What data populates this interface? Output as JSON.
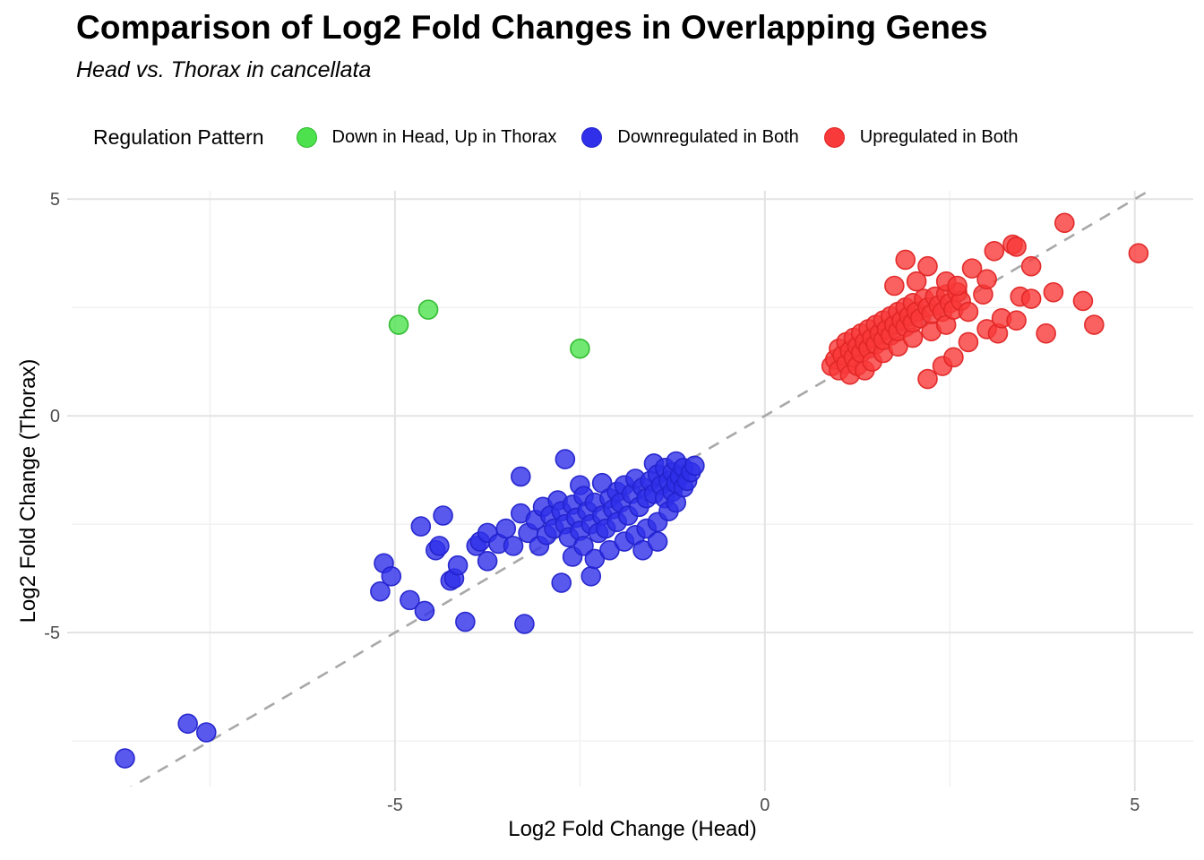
{
  "title": "Comparison of Log2 Fold Changes in Overlapping Genes",
  "subtitle": "Head vs. Thorax in cancellata",
  "legend": {
    "title": "Regulation Pattern",
    "position": "top",
    "items": [
      {
        "label": "Down in Head, Up in Thorax",
        "color": "#4de24d",
        "stroke": "#2db82d"
      },
      {
        "label": "Downregulated in Both",
        "color": "#3030ea",
        "stroke": "#2222cc"
      },
      {
        "label": "Upregulated in Both",
        "color": "#f93a3a",
        "stroke": "#e02525"
      }
    ]
  },
  "chart_data": {
    "type": "scatter",
    "title": "Comparison of Log2 Fold Changes in Overlapping Genes",
    "subtitle": "Head vs. Thorax in cancellata",
    "xlabel": "Log2 Fold Change (Head)",
    "ylabel": "Log2 Fold Change (Thorax)",
    "x_domain": [
      -9.37,
      5.79
    ],
    "y_domain": [
      -8.55,
      5.19
    ],
    "x_major_ticks": [
      -5,
      0,
      5
    ],
    "y_major_ticks": [
      5,
      0,
      -5
    ],
    "x_minor_ticks": [
      -7.5,
      -2.5,
      2.5
    ],
    "y_minor_ticks": [
      2.5,
      -2.5,
      -7.5
    ],
    "grid": true,
    "identity_line": {
      "type": "y=x",
      "style": "dashed",
      "color": "#a8a8a8"
    },
    "point_radius_px": 10.5,
    "series": [
      {
        "name": "Down in Head, Up in Thorax",
        "color": "#4de24d",
        "stroke": "#2db82d",
        "points": [
          [
            -4.95,
            2.1
          ],
          [
            -4.55,
            2.45
          ],
          [
            -2.5,
            1.55
          ]
        ]
      },
      {
        "name": "Downregulated in Both",
        "color": "#3030ea",
        "stroke": "#2222cc",
        "points": [
          [
            -8.65,
            -7.9
          ],
          [
            -7.8,
            -7.1
          ],
          [
            -7.55,
            -7.3
          ],
          [
            -5.2,
            -4.05
          ],
          [
            -5.15,
            -3.4
          ],
          [
            -5.05,
            -3.7
          ],
          [
            -4.8,
            -4.25
          ],
          [
            -4.65,
            -2.55
          ],
          [
            -4.6,
            -4.5
          ],
          [
            -4.45,
            -3.1
          ],
          [
            -4.4,
            -3.0
          ],
          [
            -4.35,
            -2.3
          ],
          [
            -4.25,
            -3.8
          ],
          [
            -4.2,
            -3.75
          ],
          [
            -4.15,
            -3.45
          ],
          [
            -4.05,
            -4.75
          ],
          [
            -3.9,
            -3.0
          ],
          [
            -3.85,
            -2.9
          ],
          [
            -3.75,
            -3.35
          ],
          [
            -3.75,
            -2.7
          ],
          [
            -3.6,
            -2.95
          ],
          [
            -3.5,
            -2.6
          ],
          [
            -3.4,
            -3.0
          ],
          [
            -3.3,
            -1.4
          ],
          [
            -3.3,
            -2.25
          ],
          [
            -3.25,
            -4.8
          ],
          [
            -3.2,
            -2.7
          ],
          [
            -3.1,
            -2.4
          ],
          [
            -3.05,
            -3.0
          ],
          [
            -3.0,
            -2.1
          ],
          [
            -2.95,
            -2.75
          ],
          [
            -2.75,
            -3.85
          ],
          [
            -2.7,
            -1.0
          ],
          [
            -2.35,
            -3.7
          ],
          [
            -2.9,
            -2.3
          ],
          [
            -2.85,
            -2.6
          ],
          [
            -2.8,
            -1.95
          ],
          [
            -2.75,
            -2.2
          ],
          [
            -2.7,
            -2.5
          ],
          [
            -2.65,
            -2.8
          ],
          [
            -2.6,
            -2.05
          ],
          [
            -2.6,
            -3.25
          ],
          [
            -2.55,
            -2.35
          ],
          [
            -2.5,
            -1.6
          ],
          [
            -2.5,
            -2.65
          ],
          [
            -2.45,
            -1.85
          ],
          [
            -2.45,
            -3.0
          ],
          [
            -2.4,
            -2.2
          ],
          [
            -2.35,
            -2.5
          ],
          [
            -2.3,
            -2.0
          ],
          [
            -2.3,
            -3.3
          ],
          [
            -2.25,
            -2.7
          ],
          [
            -2.2,
            -1.55
          ],
          [
            -2.2,
            -2.3
          ],
          [
            -2.15,
            -2.6
          ],
          [
            -2.1,
            -1.9
          ],
          [
            -2.1,
            -3.1
          ],
          [
            -2.05,
            -2.15
          ],
          [
            -2.0,
            -1.75
          ],
          [
            -2.0,
            -2.45
          ],
          [
            -1.95,
            -2.0
          ],
          [
            -1.9,
            -1.6
          ],
          [
            -1.9,
            -2.9
          ],
          [
            -1.85,
            -2.3
          ],
          [
            -1.8,
            -1.8
          ],
          [
            -1.75,
            -1.45
          ],
          [
            -1.75,
            -2.75
          ],
          [
            -1.7,
            -2.1
          ],
          [
            -1.65,
            -1.65
          ],
          [
            -1.65,
            -3.1
          ],
          [
            -1.6,
            -1.9
          ],
          [
            -1.6,
            -2.6
          ],
          [
            -1.55,
            -1.5
          ],
          [
            -1.5,
            -1.1
          ],
          [
            -1.5,
            -1.8
          ],
          [
            -1.45,
            -1.35
          ],
          [
            -1.45,
            -2.45
          ],
          [
            -1.45,
            -2.9
          ],
          [
            -1.4,
            -1.6
          ],
          [
            -1.35,
            -1.2
          ],
          [
            -1.35,
            -1.9
          ],
          [
            -1.3,
            -1.5
          ],
          [
            -1.3,
            -2.2
          ],
          [
            -1.25,
            -1.3
          ],
          [
            -1.25,
            -1.75
          ],
          [
            -1.2,
            -1.05
          ],
          [
            -1.2,
            -1.55
          ],
          [
            -1.2,
            -2.0
          ],
          [
            -1.15,
            -1.4
          ],
          [
            -1.1,
            -1.2
          ],
          [
            -1.1,
            -1.65
          ],
          [
            -1.05,
            -1.5
          ],
          [
            -1.0,
            -1.3
          ],
          [
            -0.95,
            -1.15
          ]
        ]
      },
      {
        "name": "Upregulated in Both",
        "color": "#f93a3a",
        "stroke": "#e02525",
        "points": [
          [
            0.9,
            1.15
          ],
          [
            0.95,
            1.3
          ],
          [
            1.0,
            1.05
          ],
          [
            1.0,
            1.55
          ],
          [
            1.05,
            1.4
          ],
          [
            1.1,
            1.2
          ],
          [
            1.1,
            1.7
          ],
          [
            1.15,
            0.95
          ],
          [
            1.15,
            1.5
          ],
          [
            1.2,
            1.35
          ],
          [
            1.2,
            1.8
          ],
          [
            1.25,
            1.15
          ],
          [
            1.25,
            1.6
          ],
          [
            1.3,
            1.45
          ],
          [
            1.3,
            1.9
          ],
          [
            1.35,
            1.05
          ],
          [
            1.35,
            1.7
          ],
          [
            1.4,
            1.55
          ],
          [
            1.4,
            2.0
          ],
          [
            1.45,
            1.25
          ],
          [
            1.45,
            1.8
          ],
          [
            1.5,
            1.65
          ],
          [
            1.5,
            2.1
          ],
          [
            1.55,
            1.9
          ],
          [
            1.6,
            1.45
          ],
          [
            1.6,
            1.75
          ],
          [
            1.6,
            2.2
          ],
          [
            1.65,
            2.0
          ],
          [
            1.7,
            1.85
          ],
          [
            1.7,
            2.3
          ],
          [
            1.75,
            2.1
          ],
          [
            1.8,
            1.6
          ],
          [
            1.8,
            1.95
          ],
          [
            1.8,
            2.4
          ],
          [
            1.85,
            2.2
          ],
          [
            1.9,
            2.05
          ],
          [
            1.9,
            2.5
          ],
          [
            1.95,
            2.3
          ],
          [
            2.0,
            1.8
          ],
          [
            2.0,
            2.15
          ],
          [
            2.0,
            2.6
          ],
          [
            2.05,
            2.4
          ],
          [
            2.1,
            2.25
          ],
          [
            2.15,
            2.7
          ],
          [
            2.2,
            2.5
          ],
          [
            2.25,
            1.95
          ],
          [
            2.25,
            2.35
          ],
          [
            2.3,
            2.75
          ],
          [
            2.35,
            2.55
          ],
          [
            2.4,
            2.4
          ],
          [
            2.45,
            2.1
          ],
          [
            2.45,
            2.8
          ],
          [
            2.5,
            2.6
          ],
          [
            2.55,
            2.45
          ],
          [
            2.6,
            2.85
          ],
          [
            2.65,
            2.65
          ],
          [
            2.2,
            0.85
          ],
          [
            2.4,
            1.15
          ],
          [
            2.55,
            1.35
          ],
          [
            1.75,
            3.0
          ],
          [
            1.9,
            3.6
          ],
          [
            2.05,
            3.1
          ],
          [
            2.2,
            3.45
          ],
          [
            2.45,
            3.1
          ],
          [
            2.6,
            3.0
          ],
          [
            2.8,
            3.4
          ],
          [
            2.95,
            2.8
          ],
          [
            3.0,
            2.0
          ],
          [
            3.0,
            3.15
          ],
          [
            3.1,
            3.8
          ],
          [
            3.15,
            1.9
          ],
          [
            3.2,
            2.25
          ],
          [
            3.35,
            3.95
          ],
          [
            3.4,
            2.2
          ],
          [
            3.4,
            3.9
          ],
          [
            3.45,
            2.75
          ],
          [
            3.6,
            2.7
          ],
          [
            3.6,
            3.45
          ],
          [
            3.8,
            1.9
          ],
          [
            3.9,
            2.85
          ],
          [
            4.05,
            4.45
          ],
          [
            4.3,
            2.65
          ],
          [
            4.45,
            2.1
          ],
          [
            5.05,
            3.75
          ],
          [
            2.75,
            2.4
          ],
          [
            2.75,
            1.7
          ]
        ]
      }
    ]
  },
  "axes": {
    "x_tick_labels": [
      "-5",
      "0",
      "5"
    ],
    "y_tick_labels": [
      "5",
      "0",
      "-5"
    ],
    "tick_color": "#4d4d4d"
  },
  "panel": {
    "grid_major_color": "#e3e3e3",
    "grid_minor_color": "#f0f0f0"
  }
}
